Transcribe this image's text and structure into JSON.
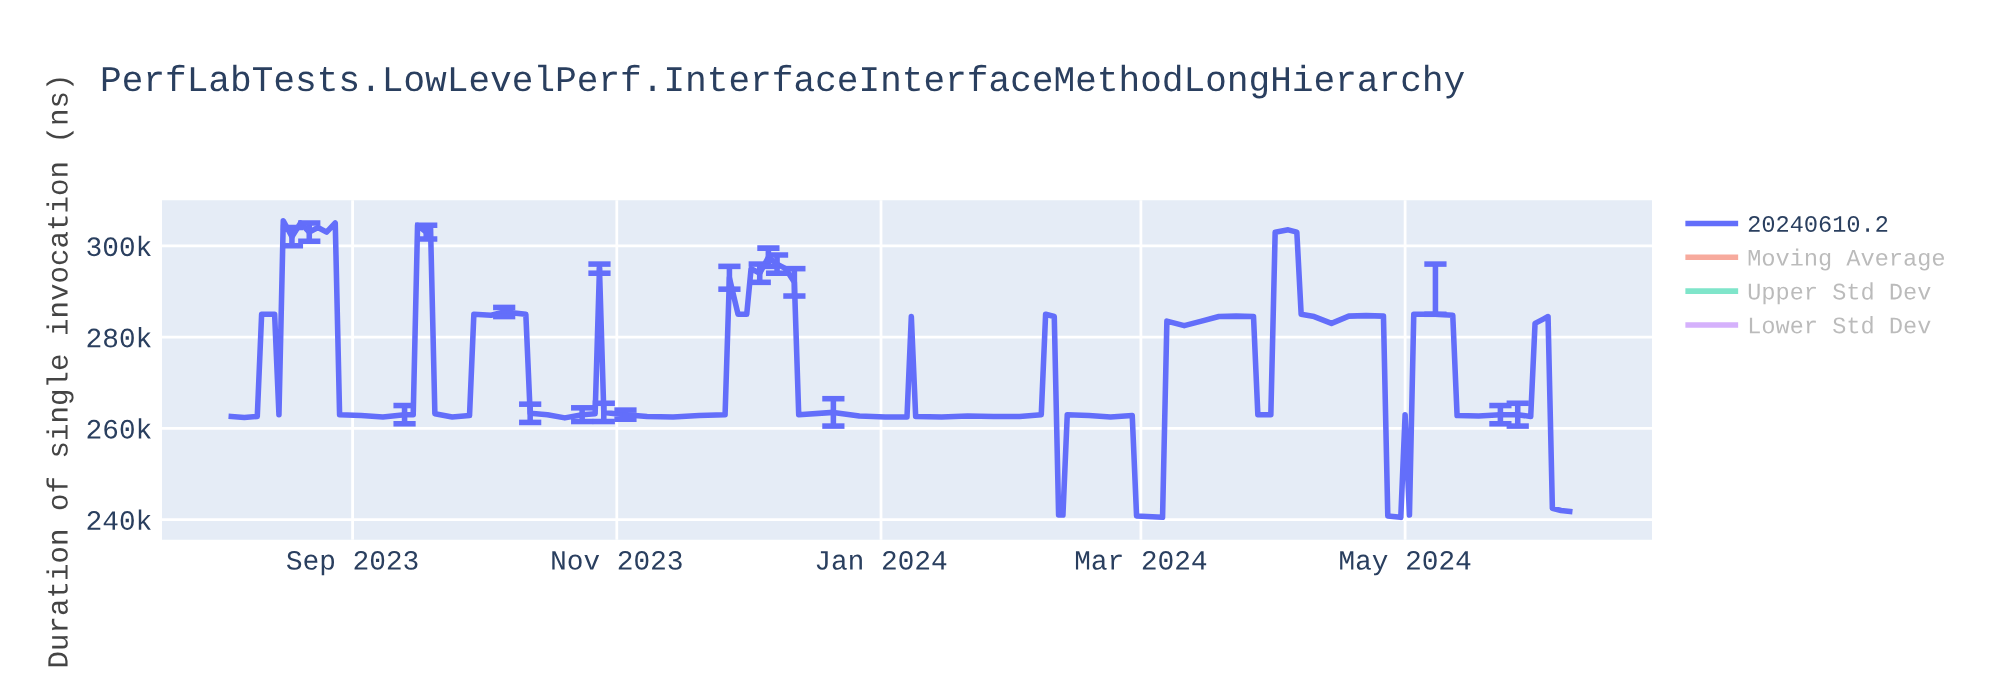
{
  "chart_data": {
    "type": "line",
    "title": "PerfLabTests.LowLevelPerf.InterfaceInterfaceMethodLongHierarchy",
    "ylabel": "Duration of single invocation (ns)",
    "x": [
      "2023-08-04",
      "2023-08-07",
      "2023-08-10",
      "2023-08-11",
      "2023-08-14",
      "2023-08-15",
      "2023-08-16",
      "2023-08-18",
      "2023-08-20",
      "2023-08-22",
      "2023-08-24",
      "2023-08-26",
      "2023-08-28",
      "2023-08-29",
      "2023-09-03",
      "2023-09-08",
      "2023-09-13",
      "2023-09-15",
      "2023-09-16",
      "2023-09-18",
      "2023-09-19",
      "2023-09-20",
      "2023-09-24",
      "2023-09-28",
      "2023-09-29",
      "2023-10-03",
      "2023-10-06",
      "2023-10-11",
      "2023-10-12",
      "2023-10-16",
      "2023-10-20",
      "2023-10-24",
      "2023-10-27",
      "2023-10-28",
      "2023-10-29",
      "2023-11-03",
      "2023-11-08",
      "2023-11-14",
      "2023-11-20",
      "2023-11-26",
      "2023-11-27",
      "2023-11-29",
      "2023-12-01",
      "2023-12-02",
      "2023-12-04",
      "2023-12-06",
      "2023-12-08",
      "2023-12-10",
      "2023-12-12",
      "2023-12-13",
      "2023-12-21",
      "2023-12-27",
      "2024-01-02",
      "2024-01-07",
      "2024-01-08",
      "2024-01-09",
      "2024-01-15",
      "2024-01-21",
      "2024-01-27",
      "2024-02-02",
      "2024-02-07",
      "2024-02-08",
      "2024-02-10",
      "2024-02-11",
      "2024-02-12",
      "2024-02-13",
      "2024-02-18",
      "2024-02-23",
      "2024-02-28",
      "2024-02-29",
      "2024-03-06",
      "2024-03-07",
      "2024-03-11",
      "2024-03-15",
      "2024-03-19",
      "2024-03-23",
      "2024-03-27",
      "2024-03-28",
      "2024-03-31",
      "2024-04-01",
      "2024-04-04",
      "2024-04-06",
      "2024-04-07",
      "2024-04-10",
      "2024-04-14",
      "2024-04-18",
      "2024-04-22",
      "2024-04-26",
      "2024-04-27",
      "2024-04-30",
      "2024-05-01",
      "2024-05-02",
      "2024-05-03",
      "2024-05-08",
      "2024-05-12",
      "2024-05-13",
      "2024-05-18",
      "2024-05-23",
      "2024-05-27",
      "2024-05-30",
      "2024-05-31",
      "2024-06-02",
      "2024-06-03",
      "2024-06-04",
      "2024-06-06",
      "2024-06-08"
    ],
    "series": [
      {
        "name": "20240610.2",
        "color": "#636efa",
        "values": [
          262600,
          262400,
          262600,
          285000,
          285000,
          263000,
          305500,
          302000,
          305000,
          303000,
          304000,
          303000,
          305000,
          263000,
          262800,
          262500,
          263000,
          263000,
          304500,
          303000,
          304000,
          263200,
          262500,
          262800,
          285000,
          284800,
          285500,
          285000,
          263300,
          263000,
          262300,
          263000,
          263200,
          295000,
          263500,
          263000,
          262600,
          262500,
          262800,
          263000,
          293000,
          285000,
          285000,
          295000,
          294000,
          297500,
          296000,
          295000,
          292000,
          263000,
          263500,
          262700,
          262500,
          262500,
          284500,
          262600,
          262500,
          262700,
          262600,
          262600,
          263000,
          285000,
          284500,
          241000,
          241000,
          263000,
          262800,
          262500,
          262800,
          240800,
          240500,
          283500,
          282500,
          283500,
          284500,
          284600,
          284500,
          263000,
          263000,
          303000,
          303500,
          303000,
          285000,
          284500,
          283000,
          284600,
          284700,
          284600,
          240800,
          240500,
          263000,
          241000,
          285000,
          285000,
          284800,
          262800,
          262700,
          263000,
          263000,
          262600,
          283000,
          284000,
          284500,
          242500,
          242000,
          241800
        ],
        "errors": [
          null,
          null,
          null,
          null,
          null,
          null,
          null,
          2000,
          null,
          2000,
          null,
          null,
          null,
          null,
          null,
          null,
          2000,
          null,
          null,
          1500,
          null,
          null,
          null,
          null,
          null,
          null,
          1000,
          null,
          2000,
          null,
          null,
          1500,
          null,
          1000,
          2000,
          1000,
          null,
          null,
          null,
          null,
          2500,
          null,
          null,
          null,
          2000,
          2000,
          2000,
          null,
          3000,
          null,
          3000,
          null,
          null,
          null,
          null,
          null,
          null,
          null,
          null,
          null,
          null,
          null,
          null,
          null,
          null,
          null,
          null,
          null,
          null,
          null,
          null,
          null,
          null,
          null,
          null,
          null,
          null,
          null,
          null,
          null,
          null,
          null,
          null,
          null,
          null,
          null,
          null,
          null,
          null,
          null,
          null,
          null,
          null,
          [
            285000,
            296000
          ],
          null,
          null,
          null,
          2000,
          2500,
          null,
          null,
          null,
          null,
          null,
          null,
          null
        ]
      },
      {
        "name": "Moving Average",
        "color": "#ef553b",
        "values": [
          null,
          null,
          null,
          null,
          null,
          null,
          null,
          null,
          null,
          null,
          null,
          null,
          null,
          null,
          null,
          null,
          null,
          null,
          null,
          null,
          null,
          null,
          null,
          null,
          null,
          null,
          null,
          null,
          null,
          null,
          null,
          null,
          null,
          null,
          null,
          null,
          null,
          null,
          null,
          null,
          null,
          null,
          null,
          null,
          null,
          null,
          null,
          null,
          null,
          null,
          null,
          null,
          null,
          null,
          null,
          null,
          null,
          null,
          null,
          null,
          null,
          null,
          null,
          null,
          null,
          null,
          null,
          null,
          null,
          null,
          null,
          null,
          null,
          null,
          null,
          null,
          null,
          null,
          null,
          null,
          null,
          null,
          null,
          null,
          null,
          null,
          null,
          null,
          null,
          null,
          null,
          null,
          null,
          null,
          null,
          null,
          null,
          null,
          null,
          null,
          null,
          null,
          null,
          null,
          null,
          null
        ]
      },
      {
        "name": "Upper Std Dev",
        "color": "#00cc96",
        "values": [
          null,
          null,
          null,
          null,
          null,
          null,
          null,
          null,
          null,
          null,
          null,
          null,
          null,
          null,
          null,
          null,
          null,
          null,
          null,
          null,
          null,
          null,
          null,
          null,
          null,
          null,
          null,
          null,
          null,
          null,
          null,
          null,
          null,
          null,
          null,
          null,
          null,
          null,
          null,
          null,
          null,
          null,
          null,
          null,
          null,
          null,
          null,
          null,
          null,
          null,
          null,
          null,
          null,
          null,
          null,
          null,
          null,
          null,
          null,
          null,
          null,
          null,
          null,
          null,
          null,
          null,
          null,
          null,
          null,
          null,
          null,
          null,
          null,
          null,
          null,
          null,
          null,
          null,
          null,
          null,
          null,
          null,
          null,
          null,
          null,
          null,
          null,
          null,
          null,
          null,
          null,
          null,
          null,
          null,
          null,
          null,
          null,
          null,
          null,
          null,
          null,
          null,
          null,
          null,
          null,
          null
        ]
      },
      {
        "name": "Lower Std Dev",
        "color": "#ab63fa",
        "values": [
          null,
          null,
          null,
          null,
          null,
          null,
          null,
          null,
          null,
          null,
          null,
          null,
          null,
          null,
          null,
          null,
          null,
          null,
          null,
          null,
          null,
          null,
          null,
          null,
          null,
          null,
          null,
          null,
          null,
          null,
          null,
          null,
          null,
          null,
          null,
          null,
          null,
          null,
          null,
          null,
          null,
          null,
          null,
          null,
          null,
          null,
          null,
          null,
          null,
          null,
          null,
          null,
          null,
          null,
          null,
          null,
          null,
          null,
          null,
          null,
          null,
          null,
          null,
          null,
          null,
          null,
          null,
          null,
          null,
          null,
          null,
          null,
          null,
          null,
          null,
          null,
          null,
          null,
          null,
          null,
          null,
          null,
          null,
          null,
          null,
          null,
          null,
          null,
          null,
          null,
          null,
          null,
          null,
          null,
          null,
          null,
          null,
          null,
          null,
          null,
          null,
          null,
          null,
          null,
          null,
          null
        ]
      }
    ],
    "xlim": [
      "2023-07-19",
      "2024-06-27"
    ],
    "xticks": [
      {
        "value": "2023-09-01",
        "label": "Sep 2023"
      },
      {
        "value": "2023-11-01",
        "label": "Nov 2023"
      },
      {
        "value": "2024-01-01",
        "label": "Jan 2024"
      },
      {
        "value": "2024-03-01",
        "label": "Mar 2024"
      },
      {
        "value": "2024-05-01",
        "label": "May 2024"
      }
    ],
    "ylim": [
      235600,
      310000
    ],
    "yticks": [
      {
        "value": 240000,
        "label": "240k"
      },
      {
        "value": 260000,
        "label": "260k"
      },
      {
        "value": 280000,
        "label": "280k"
      },
      {
        "value": 300000,
        "label": "300k"
      }
    ],
    "grid": true,
    "legend": "top right",
    "marker": "none",
    "line_style": "solid"
  }
}
